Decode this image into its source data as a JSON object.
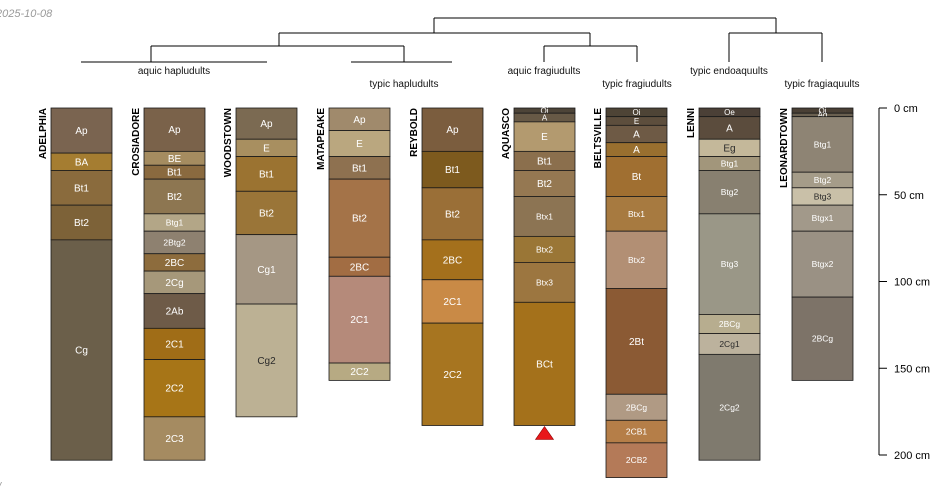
{
  "date_stamp": "2025-10-08",
  "corner_mark": "/",
  "chart_data": {
    "type": "soil-profile-dendrogram",
    "depth_unit": "cm",
    "depth_ticks": [
      {
        "depth": 0,
        "label": "0 cm"
      },
      {
        "depth": 50,
        "label": "50 cm"
      },
      {
        "depth": 100,
        "label": "100 cm"
      },
      {
        "depth": 150,
        "label": "150 cm"
      },
      {
        "depth": 200,
        "label": "200 cm"
      }
    ],
    "group_labels": [
      {
        "text": "aquic hapludults",
        "members": [
          "ADELPHIA",
          "CROSIADORE",
          "WOODSTOWN"
        ]
      },
      {
        "text": "typic hapludults",
        "members": [
          "MATAPEAKE",
          "REYBOLD"
        ]
      },
      {
        "text": "aquic fragiudults",
        "members": [
          "AQUASCO"
        ]
      },
      {
        "text": "typic fragiudults",
        "members": [
          "BELTSVILLE"
        ]
      },
      {
        "text": "typic endoaquults",
        "members": [
          "LENNI"
        ]
      },
      {
        "text": "typic fragiaquults",
        "members": [
          "LEONARDTOWN"
        ]
      }
    ],
    "profiles": [
      {
        "name": "ADELPHIA",
        "horizons": [
          {
            "name": "Ap",
            "top": 0,
            "bottom": 26,
            "color": "#7a6450"
          },
          {
            "name": "BA",
            "top": 26,
            "bottom": 36,
            "color": "#a57d31"
          },
          {
            "name": "Bt1",
            "top": 36,
            "bottom": 56,
            "color": "#8a6b3d"
          },
          {
            "name": "Bt2",
            "top": 56,
            "bottom": 76,
            "color": "#7d6238"
          },
          {
            "name": "Cg",
            "top": 76,
            "bottom": 203,
            "color": "#6b5f4a"
          }
        ]
      },
      {
        "name": "CROSIADORE",
        "horizons": [
          {
            "name": "Ap",
            "top": 0,
            "bottom": 25,
            "color": "#7a624a"
          },
          {
            "name": "BE",
            "top": 25,
            "bottom": 33,
            "color": "#a58c60"
          },
          {
            "name": "Bt1",
            "top": 33,
            "bottom": 41,
            "color": "#8a6a3f"
          },
          {
            "name": "Bt2",
            "top": 41,
            "bottom": 61,
            "color": "#8d7651"
          },
          {
            "name": "Btg1",
            "top": 61,
            "bottom": 71,
            "color": "#b3a687"
          },
          {
            "name": "2Btg2",
            "top": 71,
            "bottom": 84,
            "color": "#8e8170"
          },
          {
            "name": "2BC",
            "top": 84,
            "bottom": 94,
            "color": "#8d6c3d"
          },
          {
            "name": "2Cg",
            "top": 94,
            "bottom": 107,
            "color": "#a6987a"
          },
          {
            "name": "2Ab",
            "top": 107,
            "bottom": 127,
            "color": "#6e5b48"
          },
          {
            "name": "2C1",
            "top": 127,
            "bottom": 145,
            "color": "#a06d17"
          },
          {
            "name": "2C2",
            "top": 145,
            "bottom": 178,
            "color": "#a77517"
          },
          {
            "name": "2C3",
            "top": 178,
            "bottom": 203,
            "color": "#a58b61"
          }
        ]
      },
      {
        "name": "WOODSTOWN",
        "horizons": [
          {
            "name": "Ap",
            "top": 0,
            "bottom": 18,
            "color": "#7b6a52"
          },
          {
            "name": "E",
            "top": 18,
            "bottom": 28,
            "color": "#a88f60"
          },
          {
            "name": "Bt1",
            "top": 28,
            "bottom": 48,
            "color": "#9b7331"
          },
          {
            "name": "Bt2",
            "top": 48,
            "bottom": 73,
            "color": "#9a7538"
          },
          {
            "name": "Cg1",
            "top": 73,
            "bottom": 113,
            "color": "#a59784"
          },
          {
            "name": "Cg2",
            "top": 113,
            "bottom": 178,
            "color": "#bcb194"
          }
        ]
      },
      {
        "name": "MATAPEAKE",
        "horizons": [
          {
            "name": "Ap",
            "top": 0,
            "bottom": 13,
            "color": "#a08a6c"
          },
          {
            "name": "E",
            "top": 13,
            "bottom": 28,
            "color": "#baa77f"
          },
          {
            "name": "Bt1",
            "top": 28,
            "bottom": 41,
            "color": "#8e7150"
          },
          {
            "name": "Bt2",
            "top": 41,
            "bottom": 86,
            "color": "#a47348"
          },
          {
            "name": "2BC",
            "top": 86,
            "bottom": 97,
            "color": "#a26d43"
          },
          {
            "name": "2C1",
            "top": 97,
            "bottom": 147,
            "color": "#b58a7a"
          },
          {
            "name": "2C2",
            "top": 147,
            "bottom": 157,
            "color": "#b7aa83"
          }
        ]
      },
      {
        "name": "REYBOLD",
        "horizons": [
          {
            "name": "Ap",
            "top": 0,
            "bottom": 25,
            "color": "#7b5d3e"
          },
          {
            "name": "Bt1",
            "top": 25,
            "bottom": 46,
            "color": "#7d5a1e"
          },
          {
            "name": "Bt2",
            "top": 46,
            "bottom": 76,
            "color": "#9a6f37"
          },
          {
            "name": "2BC",
            "top": 76,
            "bottom": 99,
            "color": "#a4701c"
          },
          {
            "name": "2C1",
            "top": 99,
            "bottom": 124,
            "color": "#c98a46"
          },
          {
            "name": "2C2",
            "top": 124,
            "bottom": 183,
            "color": "#a77520"
          }
        ]
      },
      {
        "name": "AQUASCO",
        "bottom_marker": "▲",
        "horizons": [
          {
            "name": "Oi",
            "top": 0,
            "bottom": 3,
            "color": "#4d4438"
          },
          {
            "name": "A",
            "top": 3,
            "bottom": 8,
            "color": "#675946"
          },
          {
            "name": "E",
            "top": 8,
            "bottom": 25,
            "color": "#b39a6f"
          },
          {
            "name": "Bt1",
            "top": 25,
            "bottom": 36,
            "color": "#8b6f4d"
          },
          {
            "name": "Bt2",
            "top": 36,
            "bottom": 51,
            "color": "#957852"
          },
          {
            "name": "Btx1",
            "top": 51,
            "bottom": 74,
            "color": "#8c7453"
          },
          {
            "name": "Btx2",
            "top": 74,
            "bottom": 89,
            "color": "#9a7636"
          },
          {
            "name": "Btx3",
            "top": 89,
            "bottom": 112,
            "color": "#9c7640"
          },
          {
            "name": "BCt",
            "top": 112,
            "bottom": 183,
            "color": "#a4711b"
          }
        ]
      },
      {
        "name": "BELTSVILLE",
        "horizons": [
          {
            "name": "Oi",
            "top": 0,
            "bottom": 5,
            "color": "#4e4436"
          },
          {
            "name": "E",
            "top": 5,
            "bottom": 10,
            "color": "#5d4e3d"
          },
          {
            "name": "A",
            "top": 10,
            "bottom": 20,
            "color": "#6e5a45"
          },
          {
            "name": "A",
            "top": 20,
            "bottom": 28,
            "color": "#996f2f"
          },
          {
            "name": "Bt",
            "top": 28,
            "bottom": 51,
            "color": "#a06f31"
          },
          {
            "name": "Btx1",
            "top": 51,
            "bottom": 71,
            "color": "#a77a40"
          },
          {
            "name": "Btx2",
            "top": 71,
            "bottom": 104,
            "color": "#b28f74"
          },
          {
            "name": "2Bt",
            "top": 104,
            "bottom": 165,
            "color": "#8b5a34"
          },
          {
            "name": "2BCg",
            "top": 165,
            "bottom": 180,
            "color": "#b09a84"
          },
          {
            "name": "2CB1",
            "top": 180,
            "bottom": 193,
            "color": "#b57e48"
          },
          {
            "name": "2CB2",
            "top": 193,
            "bottom": 213,
            "color": "#b47a58"
          }
        ]
      },
      {
        "name": "LENNI",
        "horizons": [
          {
            "name": "Oe",
            "top": 0,
            "bottom": 5,
            "color": "#4b4037"
          },
          {
            "name": "A",
            "top": 5,
            "bottom": 18,
            "color": "#5b4c3d"
          },
          {
            "name": "Eg",
            "top": 18,
            "bottom": 28,
            "color": "#c4b89a"
          },
          {
            "name": "Btg1",
            "top": 28,
            "bottom": 36,
            "color": "#a2967b"
          },
          {
            "name": "Btg2",
            "top": 36,
            "bottom": 61,
            "color": "#888070"
          },
          {
            "name": "Btg3",
            "top": 61,
            "bottom": 119,
            "color": "#9a9787"
          },
          {
            "name": "2BCg",
            "top": 119,
            "bottom": 130,
            "color": "#b7ad8f"
          },
          {
            "name": "2Cg1",
            "top": 130,
            "bottom": 142,
            "color": "#bcb29d"
          },
          {
            "name": "2Cg2",
            "top": 142,
            "bottom": 203,
            "color": "#7f7a6e"
          }
        ]
      },
      {
        "name": "LEONARDTOWN",
        "horizons": [
          {
            "name": "Oi",
            "top": 0,
            "bottom": 3,
            "color": "#4a4035"
          },
          {
            "name": "Ag",
            "top": 3,
            "bottom": 5,
            "color": "#6a6050"
          },
          {
            "name": "Btg1",
            "top": 5,
            "bottom": 37,
            "color": "#8e8474"
          },
          {
            "name": "Btg2",
            "top": 37,
            "bottom": 46,
            "color": "#a59c89"
          },
          {
            "name": "Btg3",
            "top": 46,
            "bottom": 56,
            "color": "#c9c0a8"
          },
          {
            "name": "Btgx1",
            "top": 56,
            "bottom": 71,
            "color": "#a2998a"
          },
          {
            "name": "Btgx2",
            "top": 71,
            "bottom": 109,
            "color": "#9a9184"
          },
          {
            "name": "2BCg",
            "top": 109,
            "bottom": 157,
            "color": "#7d7368"
          }
        ]
      }
    ]
  }
}
